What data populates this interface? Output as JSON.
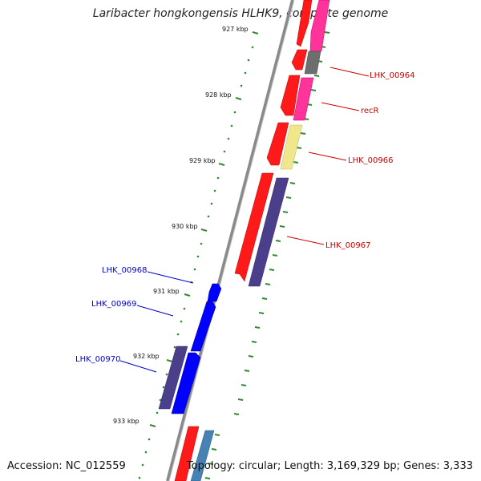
{
  "title": "Laribacter hongkongensis HLHK9, complete genome",
  "accession_text": "Accession: NC_012559",
  "summary_text": "Topology: circular; Length: 3,169,329 bp; Genes: 3,333",
  "tick_labels": [
    "927 kbp",
    "928 kbp",
    "929 kbp",
    "930 kbp",
    "931 kbp",
    "932 kbp",
    "933 kbp"
  ],
  "colors": {
    "backbone": "#8a8a8a",
    "tick": "#2e8b2e",
    "forward_label": "#cc0000",
    "reverse_label": "#0000cc",
    "cds_red": "#ff1a1a",
    "pink": "#ff3399",
    "gray_gene": "#6e6e6e",
    "khaki_gene": "#f0e68c",
    "slate_gene": "#4b3f8c",
    "blue_gene": "#0000ff",
    "steel_gene": "#4682b4"
  },
  "genes": {
    "forward_labels": [
      "LHK_00964",
      "recR",
      "LHK_00966",
      "LHK_00967"
    ],
    "reverse_labels": [
      "LHK_00968",
      "LHK_00969",
      "LHK_00970"
    ]
  }
}
